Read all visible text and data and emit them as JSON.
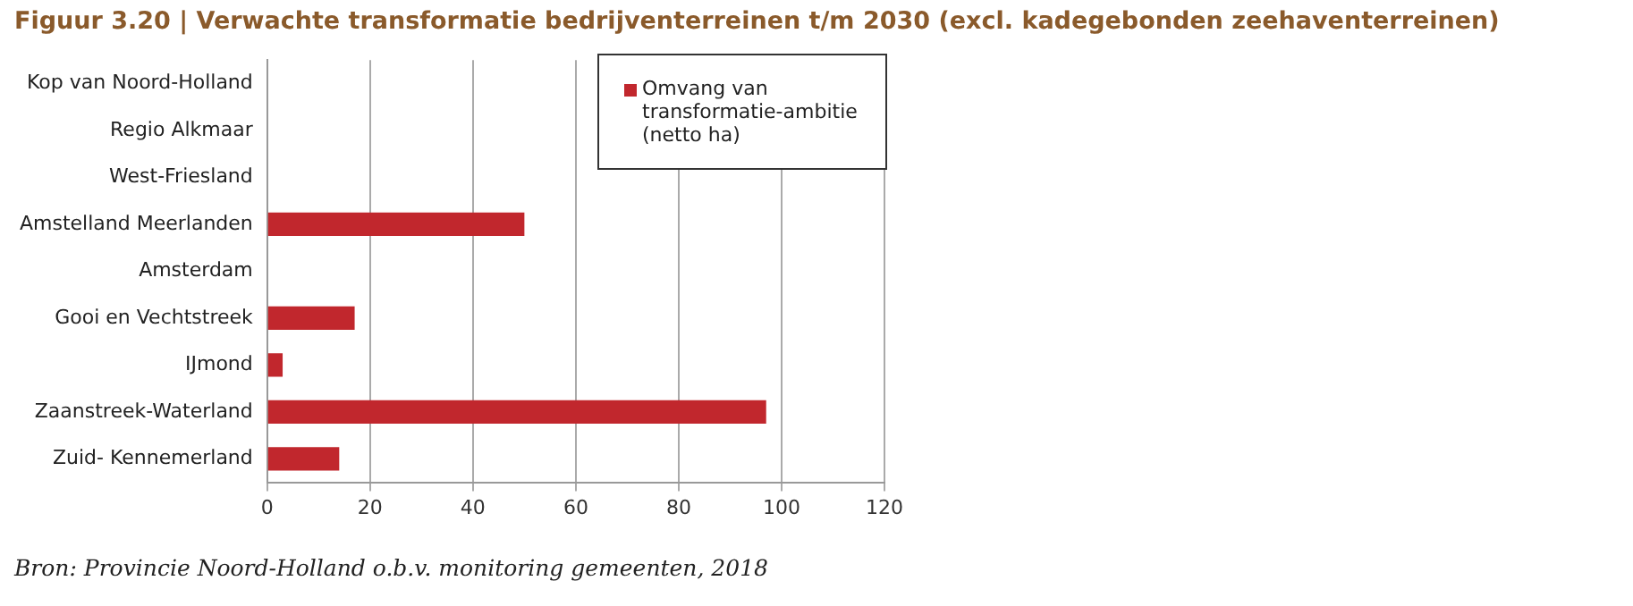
{
  "chart_data": {
    "type": "bar",
    "orientation": "horizontal",
    "title": "Figuur 3.20 | Verwachte transformatie bedrijventerreinen t/m 2030 (excl. kadegebonden zeehaventerreinen)",
    "categories": [
      "Kop van Noord-Holland",
      "Regio Alkmaar",
      "West-Friesland",
      "Amstelland Meerlanden",
      "Amsterdam",
      "Gooi en Vechtstreek",
      "IJmond",
      "Zaanstreek-Waterland",
      "Zuid- Kennemerland"
    ],
    "series": [
      {
        "name": "Omvang van transformatie-ambitie (netto ha)",
        "color": "#c1272d",
        "values": [
          0,
          0,
          0,
          50,
          0,
          17,
          3,
          97,
          14
        ]
      }
    ],
    "xlim": [
      0,
      120
    ],
    "xticks": [
      0,
      20,
      40,
      60,
      80,
      100,
      120
    ],
    "grid": "x",
    "legend": "top right",
    "annotations": [
      "Bron: Provincie Noord-Holland o.b.v. monitoring gemeenten, 2018"
    ]
  }
}
